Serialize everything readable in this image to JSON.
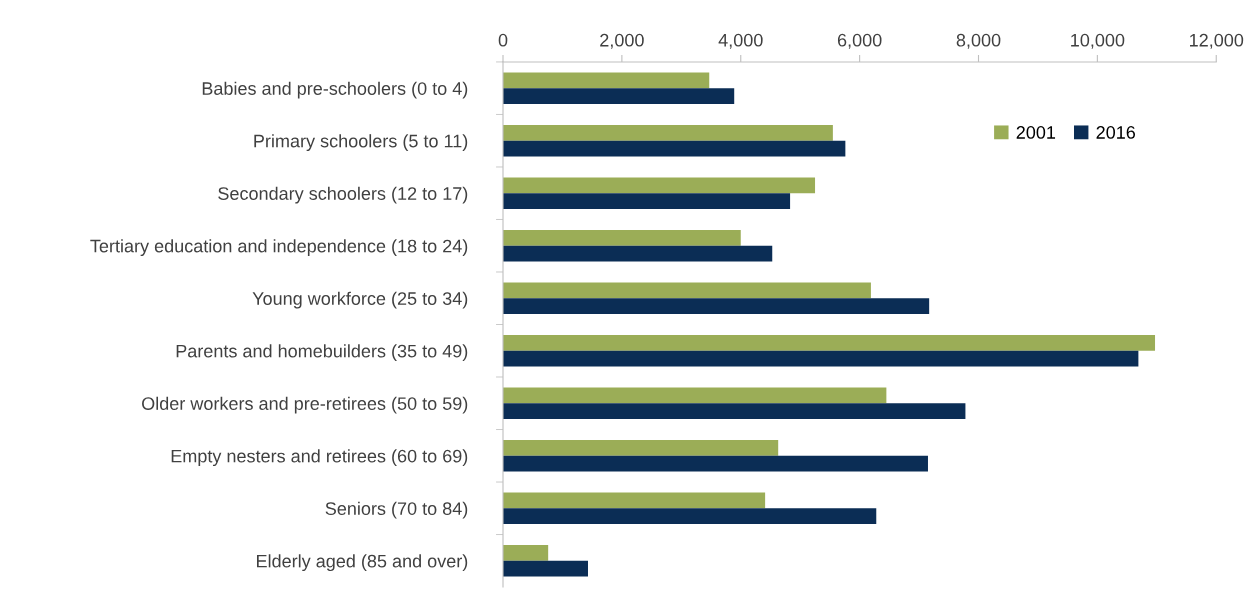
{
  "chart_data": {
    "type": "bar",
    "orientation": "horizontal",
    "categories": [
      "Babies and pre-schoolers (0 to 4)",
      "Primary schoolers (5 to 11)",
      "Secondary schoolers (12 to 17)",
      "Tertiary education and independence (18 to 24)",
      "Young workforce (25 to 34)",
      "Parents and homebuilders (35 to 49)",
      "Older workers and pre-retirees (50 to 59)",
      "Empty nesters and retirees (60 to 69)",
      "Seniors (70 to 84)",
      "Elderly aged (85 and over)"
    ],
    "series": [
      {
        "name": "2001",
        "color": "#9bad57",
        "values": [
          3470,
          5550,
          5250,
          4000,
          6190,
          10970,
          6450,
          4630,
          4410,
          760
        ]
      },
      {
        "name": "2016",
        "color": "#0b2d55",
        "values": [
          3890,
          5760,
          4830,
          4530,
          7170,
          10690,
          7780,
          7150,
          6280,
          1430
        ]
      }
    ],
    "xlim": [
      0,
      12000
    ],
    "xticks": [
      {
        "value": 0,
        "label": "0"
      },
      {
        "value": 2000,
        "label": "2,000"
      },
      {
        "value": 4000,
        "label": "4,000"
      },
      {
        "value": 6000,
        "label": "6,000"
      },
      {
        "value": 8000,
        "label": "8,000"
      },
      {
        "value": 10000,
        "label": "10,000"
      },
      {
        "value": 12000,
        "label": "12,000"
      }
    ],
    "grid": false,
    "legend": "top right"
  }
}
